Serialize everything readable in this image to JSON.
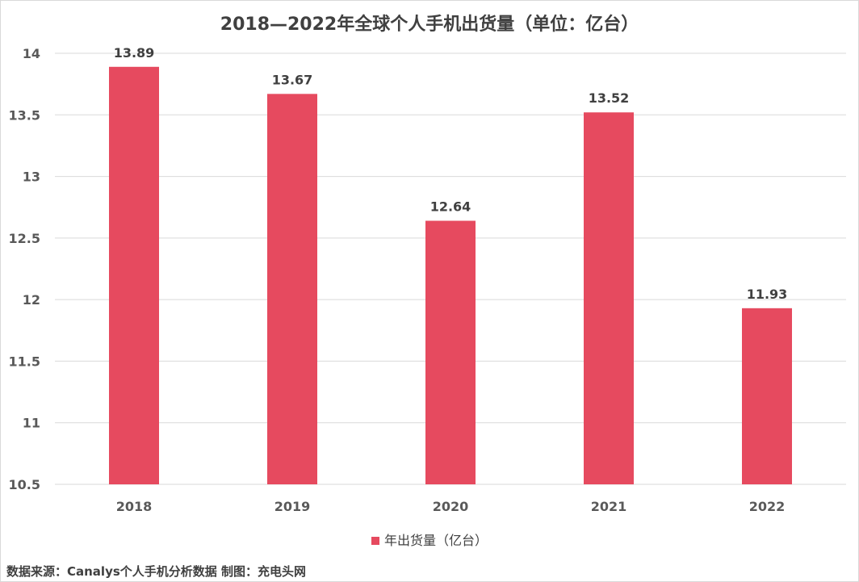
{
  "chart_data": {
    "type": "bar",
    "title": "2018—2022年全球个人手机出货量（单位：亿台）",
    "categories": [
      "2018",
      "2019",
      "2020",
      "2021",
      "2022"
    ],
    "series": [
      {
        "name": "年出货量（亿台）",
        "values": [
          13.89,
          13.67,
          12.64,
          13.52,
          11.93
        ]
      }
    ],
    "ylim": [
      10.5,
      14
    ],
    "yticks": [
      "10.5",
      "11",
      "11.5",
      "12",
      "12.5",
      "13",
      "13.5",
      "14"
    ],
    "grid": true,
    "legend": "bottom",
    "bar_color": "#E64A5F"
  },
  "footer": {
    "source": "数据来源：Canalys个人手机分析数据 制图：充电头网"
  }
}
